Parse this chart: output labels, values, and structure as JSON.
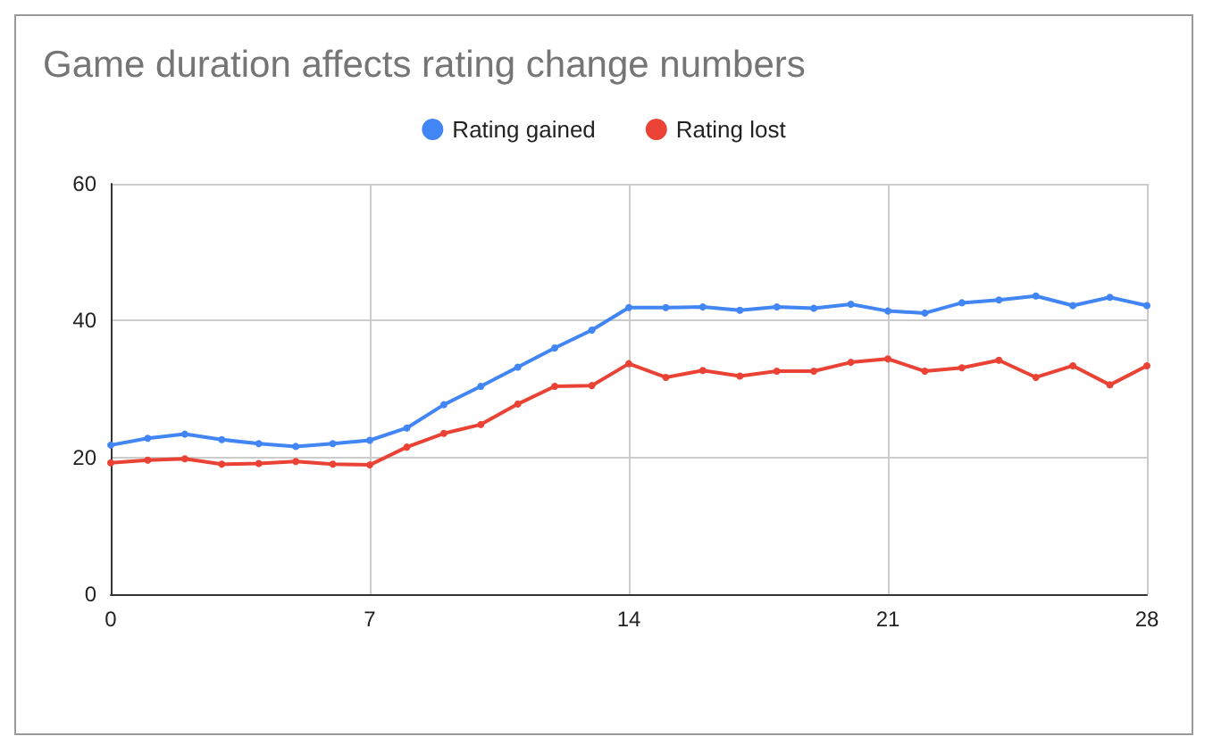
{
  "chart_data": {
    "type": "line",
    "title": "Game duration affects rating change numbers",
    "x": [
      0,
      1,
      2,
      3,
      4,
      5,
      6,
      7,
      8,
      9,
      10,
      11,
      12,
      13,
      14,
      15,
      16,
      17,
      18,
      19,
      20,
      21,
      22,
      23,
      24,
      25,
      26,
      27,
      28
    ],
    "series": [
      {
        "name": "Rating gained",
        "color": "#4285f4",
        "values": [
          21.8,
          22.8,
          23.4,
          22.6,
          22,
          21.6,
          22,
          22.5,
          24.3,
          27.7,
          30.4,
          33.2,
          36,
          38.6,
          41.9,
          41.9,
          42,
          41.5,
          42,
          41.8,
          42.4,
          41.4,
          41.1,
          42.6,
          43,
          43.6,
          42.2,
          43.4,
          42.2
        ]
      },
      {
        "name": "Rating lost",
        "color": "#ea4335",
        "values": [
          19.2,
          19.6,
          19.8,
          19,
          19.1,
          19.4,
          19,
          18.9,
          21.5,
          23.5,
          24.8,
          27.8,
          30.4,
          30.5,
          33.7,
          31.7,
          32.7,
          31.9,
          32.6,
          32.6,
          33.9,
          34.4,
          32.6,
          33.1,
          34.2,
          31.7,
          33.4,
          30.6,
          33.4
        ]
      }
    ],
    "xlim": [
      0,
      28
    ],
    "xticks": [
      0,
      7,
      14,
      21,
      28
    ],
    "ylim": [
      0,
      60
    ],
    "yticks": [
      0,
      20,
      40,
      60
    ],
    "grid": true,
    "legend": "top",
    "marker": "circle",
    "line_style": "solid"
  }
}
